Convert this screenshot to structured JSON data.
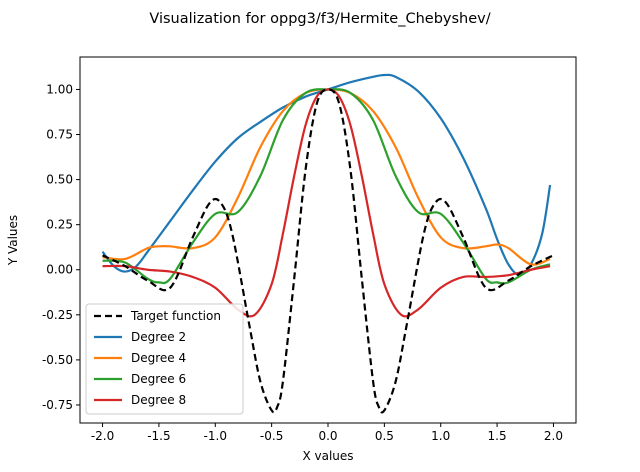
{
  "figure": {
    "title": "Visualization for oppg3/f3/Hermite_Chebyshev/"
  },
  "chart_data": {
    "type": "line",
    "title": "Visualization for oppg3/f3/Hermite_Chebyshev/",
    "xlabel": "X values",
    "ylabel": "Y Values",
    "xlim": [
      -2.2,
      2.2
    ],
    "ylim": [
      -0.85,
      1.18
    ],
    "x_ticks": [
      -2.0,
      -1.5,
      -1.0,
      -0.5,
      0.0,
      0.5,
      1.0,
      1.5,
      2.0
    ],
    "x_tick_labels": [
      "-2.0",
      "-1.5",
      "-1.0",
      "-0.5",
      "0.0",
      "0.5",
      "1.0",
      "1.5",
      "2.0"
    ],
    "y_ticks": [
      -0.75,
      -0.5,
      -0.25,
      0.0,
      0.25,
      0.5,
      0.75,
      1.0
    ],
    "y_tick_labels": [
      "-0.75",
      "-0.50",
      "-0.25",
      "0.00",
      "0.25",
      "0.50",
      "0.75",
      "1.00"
    ],
    "grid": false,
    "legend_position": "lower-left",
    "series": [
      {
        "name": "Target function",
        "color": "#000000",
        "style": "dashed",
        "x": [
          -2.0,
          -1.8,
          -1.6,
          -1.4,
          -1.2,
          -1.05,
          -0.95,
          -0.85,
          -0.7,
          -0.6,
          -0.5,
          -0.45,
          -0.4,
          -0.3,
          -0.2,
          -0.1,
          0.0,
          0.1,
          0.2,
          0.3,
          0.4,
          0.45,
          0.5,
          0.6,
          0.7,
          0.85,
          0.95,
          1.05,
          1.2,
          1.4,
          1.6,
          1.8,
          2.0
        ],
        "y": [
          0.08,
          0.02,
          -0.06,
          -0.1,
          0.18,
          0.37,
          0.37,
          0.2,
          -0.3,
          -0.62,
          -0.78,
          -0.76,
          -0.62,
          -0.05,
          0.55,
          0.92,
          1.0,
          0.92,
          0.55,
          -0.05,
          -0.62,
          -0.76,
          -0.78,
          -0.62,
          -0.3,
          0.2,
          0.37,
          0.37,
          0.18,
          -0.1,
          -0.06,
          0.02,
          0.08
        ]
      },
      {
        "name": "Degree 2",
        "color": "#1f77b4",
        "style": "solid",
        "x": [
          -2.0,
          -1.9,
          -1.8,
          -1.7,
          -1.6,
          -1.4,
          -1.2,
          -1.0,
          -0.8,
          -0.6,
          -0.4,
          -0.2,
          0.0,
          0.2,
          0.4,
          0.5,
          0.6,
          0.8,
          1.0,
          1.2,
          1.4,
          1.5,
          1.6,
          1.7,
          1.8,
          1.9,
          1.97
        ],
        "y": [
          0.1,
          0.02,
          -0.01,
          0.02,
          0.1,
          0.27,
          0.44,
          0.6,
          0.73,
          0.82,
          0.9,
          0.96,
          1.0,
          1.04,
          1.07,
          1.08,
          1.07,
          0.99,
          0.84,
          0.62,
          0.34,
          0.17,
          0.03,
          -0.03,
          0.03,
          0.2,
          0.47
        ]
      },
      {
        "name": "Degree 4",
        "color": "#ff7f0e",
        "style": "solid",
        "x": [
          -2.0,
          -1.8,
          -1.6,
          -1.5,
          -1.4,
          -1.2,
          -1.0,
          -0.8,
          -0.6,
          -0.4,
          -0.2,
          0.0,
          0.2,
          0.4,
          0.6,
          0.8,
          1.0,
          1.2,
          1.4,
          1.5,
          1.6,
          1.8,
          1.97
        ],
        "y": [
          0.07,
          0.06,
          0.12,
          0.13,
          0.13,
          0.12,
          0.18,
          0.4,
          0.68,
          0.88,
          0.98,
          1.0,
          0.98,
          0.88,
          0.68,
          0.4,
          0.18,
          0.12,
          0.13,
          0.14,
          0.12,
          0.03,
          0.06
        ]
      },
      {
        "name": "Degree 6",
        "color": "#2ca02c",
        "style": "solid",
        "x": [
          -2.0,
          -1.8,
          -1.6,
          -1.5,
          -1.4,
          -1.2,
          -1.0,
          -0.8,
          -0.6,
          -0.4,
          -0.2,
          0.0,
          0.2,
          0.4,
          0.6,
          0.8,
          1.0,
          1.2,
          1.4,
          1.5,
          1.6,
          1.8,
          1.97
        ],
        "y": [
          0.05,
          0.04,
          -0.05,
          -0.07,
          -0.05,
          0.15,
          0.31,
          0.32,
          0.52,
          0.83,
          0.98,
          1.0,
          0.98,
          0.83,
          0.52,
          0.32,
          0.31,
          0.15,
          -0.05,
          -0.07,
          -0.07,
          0.0,
          0.03
        ]
      },
      {
        "name": "Degree 8",
        "color": "#d62728",
        "style": "solid",
        "x": [
          -2.0,
          -1.8,
          -1.6,
          -1.4,
          -1.2,
          -1.0,
          -0.8,
          -0.65,
          -0.5,
          -0.4,
          -0.3,
          -0.2,
          -0.1,
          0.0,
          0.1,
          0.2,
          0.3,
          0.4,
          0.5,
          0.65,
          0.8,
          1.0,
          1.2,
          1.4,
          1.6,
          1.8,
          1.97
        ],
        "y": [
          0.02,
          0.02,
          0.0,
          -0.01,
          -0.04,
          -0.1,
          -0.22,
          -0.25,
          -0.08,
          0.2,
          0.52,
          0.8,
          0.96,
          1.0,
          0.96,
          0.8,
          0.52,
          0.2,
          -0.08,
          -0.25,
          -0.22,
          -0.1,
          -0.04,
          -0.04,
          -0.03,
          0.0,
          0.02
        ]
      }
    ]
  }
}
